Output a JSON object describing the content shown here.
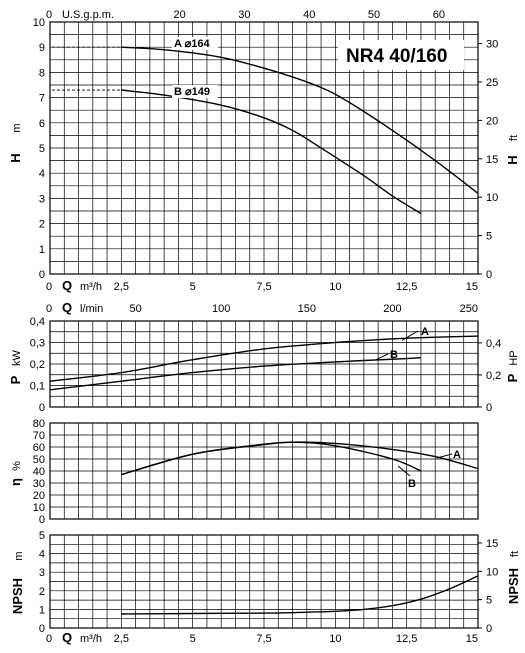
{
  "chart_data": {
    "type": "line",
    "title": "NR4 40/160",
    "x_top_label": "U.S.g.p.m.",
    "x_top_ticks": [
      "0",
      "20",
      "30",
      "40",
      "50",
      "60"
    ],
    "q_symbol": "Q",
    "q_m3h_unit": "m³/h",
    "q_lmin_unit": "l/min",
    "q_m3h_ticks": [
      "0",
      "2,5",
      "5",
      "7,5",
      "10",
      "12,5",
      "15"
    ],
    "q_lmin_ticks": [
      "0",
      "50",
      "100",
      "150",
      "200",
      "250"
    ],
    "panels": [
      {
        "id": "head",
        "y_symbol": "H",
        "y_unit": "m",
        "y2_symbol": "H",
        "y2_unit": "ft",
        "ylim": [
          0,
          10
        ],
        "y_ticks": [
          "0",
          "1",
          "2",
          "3",
          "4",
          "5",
          "6",
          "7",
          "8",
          "9",
          "10"
        ],
        "y2_ticks": [
          "0",
          "5",
          "10",
          "15",
          "20",
          "25",
          "30"
        ],
        "series": [
          {
            "name": "A",
            "label": "A ⌀164",
            "x": [
              2.5,
              4,
              6,
              8,
              9.5,
              10.5,
              12,
              13.5,
              15
            ],
            "y": [
              9.0,
              8.9,
              8.6,
              8.0,
              7.4,
              6.8,
              5.7,
              4.5,
              3.2
            ]
          },
          {
            "name": "B",
            "label": "B ⌀149",
            "x": [
              2.5,
              4,
              6,
              7.5,
              8.5,
              9.5,
              11,
              12,
              13
            ],
            "y": [
              7.3,
              7.1,
              6.7,
              6.2,
              5.7,
              5.0,
              3.9,
              3.1,
              2.4
            ]
          }
        ]
      },
      {
        "id": "power",
        "y_symbol": "P",
        "y_unit": "kW",
        "y2_symbol": "P",
        "y2_unit": "HP",
        "ylim": [
          0,
          0.4
        ],
        "y_ticks": [
          "0",
          "0,1",
          "0,2",
          "0,3",
          "0,4"
        ],
        "y2_ticks": [
          "0",
          "0,2",
          "0,4"
        ],
        "series": [
          {
            "name": "A",
            "x": [
              0,
              2.5,
              5,
              7.5,
              10,
              12.5,
              15
            ],
            "y": [
              0.12,
              0.16,
              0.22,
              0.27,
              0.3,
              0.32,
              0.33
            ]
          },
          {
            "name": "B",
            "x": [
              0,
              2.5,
              5,
              7.5,
              10,
              12.5,
              13
            ],
            "y": [
              0.08,
              0.12,
              0.16,
              0.19,
              0.21,
              0.225,
              0.23
            ]
          }
        ]
      },
      {
        "id": "efficiency",
        "y_symbol": "η",
        "y_unit": "%",
        "ylim": [
          0,
          80
        ],
        "y_ticks": [
          "0",
          "10",
          "20",
          "30",
          "40",
          "50",
          "60",
          "70",
          "80"
        ],
        "series": [
          {
            "name": "A",
            "x": [
              2.5,
              5,
              7.5,
              8.5,
              10,
              12,
              13.5,
              15
            ],
            "y": [
              37,
              54,
              62,
              64,
              63,
              58,
              52,
              42
            ]
          },
          {
            "name": "B",
            "x": [
              2.5,
              5,
              7,
              8.5,
              10,
              12,
              13
            ],
            "y": [
              37,
              54,
              61,
              64,
              61,
              50,
              40
            ]
          }
        ]
      },
      {
        "id": "npsh",
        "y_symbol": "NPSH",
        "y_unit": "m",
        "y2_symbol": "NPSH",
        "y2_unit": "ft",
        "ylim": [
          0,
          5
        ],
        "y_ticks": [
          "0",
          "1",
          "2",
          "3",
          "4",
          "5"
        ],
        "y2_ticks": [
          "0",
          "5",
          "10",
          "15"
        ],
        "series": [
          {
            "name": "NPSH",
            "x": [
              2.5,
              5,
              7.5,
              9,
              10,
              11,
              12,
              13,
              14,
              15
            ],
            "y": [
              0.75,
              0.78,
              0.8,
              0.85,
              0.9,
              1.0,
              1.2,
              1.55,
              2.1,
              2.8
            ]
          }
        ]
      }
    ]
  }
}
